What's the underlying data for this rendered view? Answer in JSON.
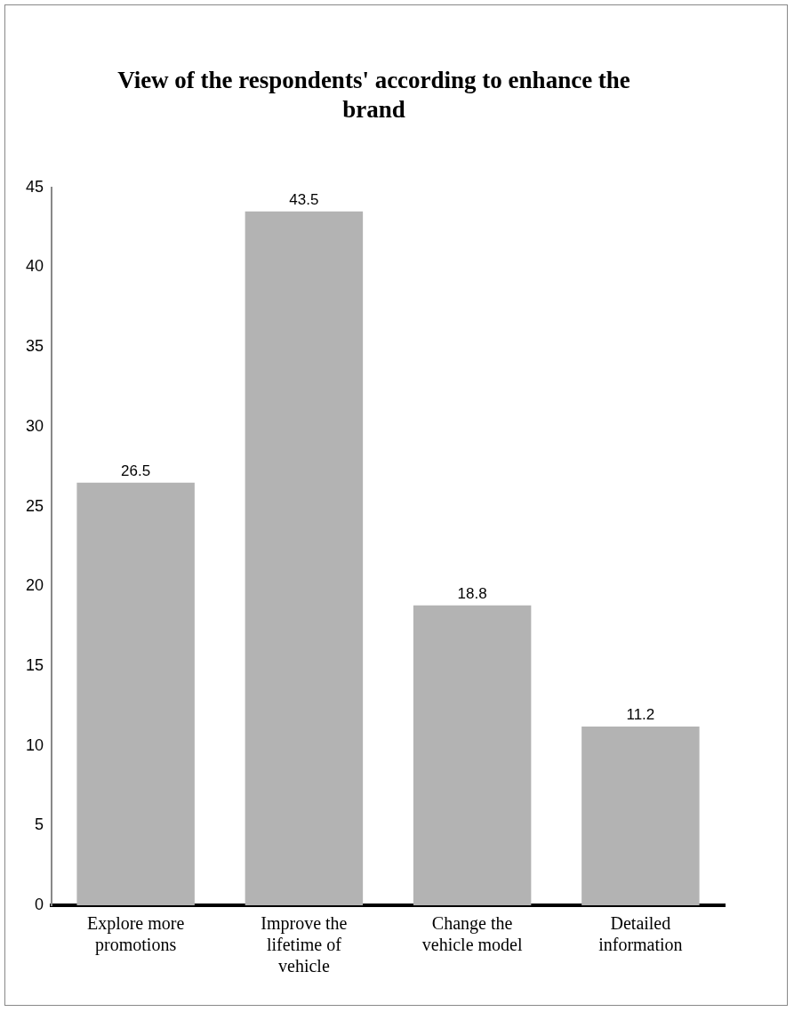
{
  "chart_data": {
    "type": "bar",
    "title": "View of the respondents' according to enhance the brand",
    "categories": [
      "Explore more promotions",
      "Improve the lifetime of vehicle",
      "Change the vehicle model",
      "Detailed information"
    ],
    "values": [
      26.5,
      43.5,
      18.8,
      11.2
    ],
    "color": "#b3b3b3",
    "ylim": [
      0,
      45
    ],
    "yticks": [
      0,
      5,
      10,
      15,
      20,
      25,
      30,
      35,
      40,
      45
    ],
    "grid": false,
    "legend": false,
    "data_labels": true
  }
}
